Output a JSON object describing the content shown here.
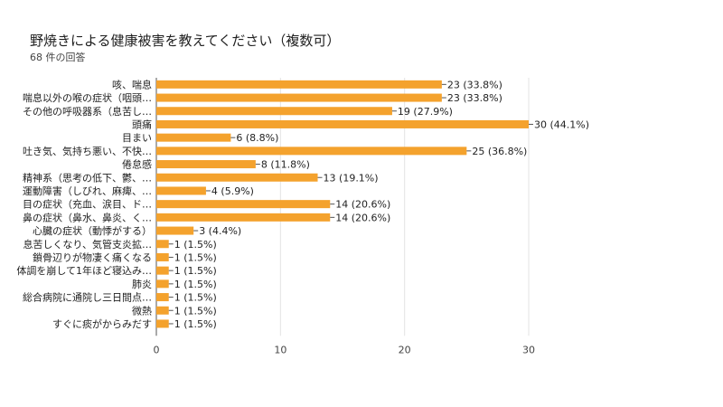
{
  "chart_data": {
    "type": "bar",
    "orientation": "horizontal",
    "title": "野焼きによる健康被害を教えてください（複数可）",
    "subtitle": "68 件の回答",
    "bar_color": "#f4a22d",
    "categories": [
      "咳、喘息",
      "喘息以外の喉の症状（咽頭…",
      "その他の呼吸器系（息苦し…",
      "頭痛",
      "目まい",
      "吐き気、気持ち悪い、不快…",
      "倦怠感",
      "精神系（思考の低下、鬱、…",
      "運動障害（しびれ、麻痺、…",
      "目の症状（充血、涙目、ド…",
      "鼻の症状（鼻水、鼻炎、く…",
      "心臓の症状（動悸がする）",
      "息苦しくなり、気管支炎拡…",
      "鎖骨辺りが物凄く痛くなる",
      "体調を崩して1年ほど寝込み…",
      "肺炎",
      "総合病院に通院し三日間点…",
      "微熱",
      "すぐに痰がからみだす"
    ],
    "values": [
      23,
      23,
      19,
      30,
      6,
      25,
      8,
      13,
      4,
      14,
      14,
      3,
      1,
      1,
      1,
      1,
      1,
      1,
      1
    ],
    "value_labels": [
      "23 (33.8%)",
      "23 (33.8%)",
      "19 (27.9%)",
      "30 (44.1%)",
      "6 (8.8%)",
      "25 (36.8%)",
      "8 (11.8%)",
      "13 (19.1%)",
      "4 (5.9%)",
      "14 (20.6%)",
      "14 (20.6%)",
      "3 (4.4%)",
      "1 (1.5%)",
      "1 (1.5%)",
      "1 (1.5%)",
      "1 (1.5%)",
      "1 (1.5%)",
      "1 (1.5%)",
      "1 (1.5%)"
    ],
    "xlim": [
      0,
      30
    ],
    "xticks": [
      "0",
      "10",
      "20",
      "30"
    ],
    "grid": true
  }
}
